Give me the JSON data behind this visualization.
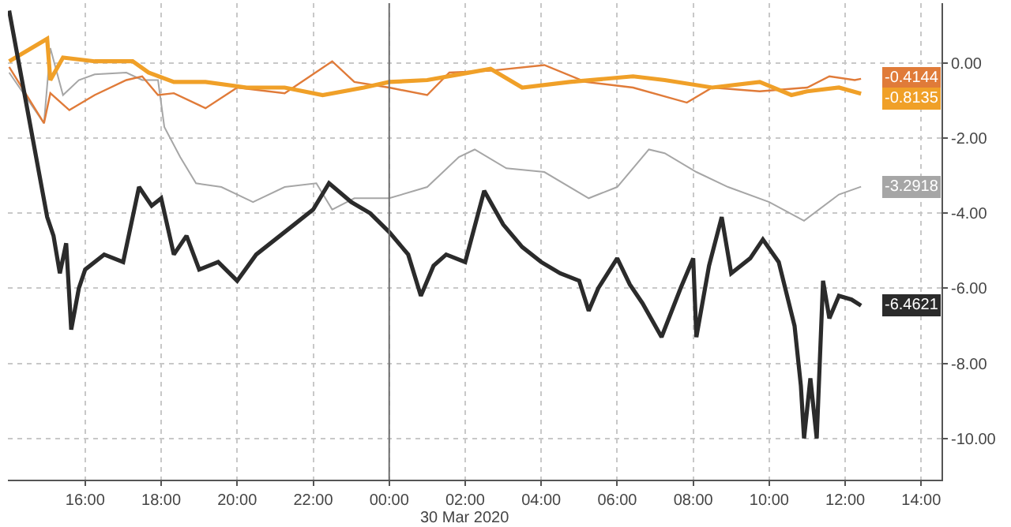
{
  "chart_data": {
    "type": "line",
    "xlim": [
      "2020-03-29T13:58",
      "2020-03-30T14:32"
    ],
    "xticks": [
      {
        "value": "2020-03-29T16:00",
        "label": "16:00"
      },
      {
        "value": "2020-03-29T18:00",
        "label": "18:00"
      },
      {
        "value": "2020-03-29T20:00",
        "label": "20:00"
      },
      {
        "value": "2020-03-29T22:00",
        "label": "22:00"
      },
      {
        "value": "2020-03-30T00:00",
        "label": "00:00"
      },
      {
        "value": "2020-03-30T02:00",
        "label": "02:00"
      },
      {
        "value": "2020-03-30T04:00",
        "label": "04:00"
      },
      {
        "value": "2020-03-30T06:00",
        "label": "06:00"
      },
      {
        "value": "2020-03-30T08:00",
        "label": "08:00"
      },
      {
        "value": "2020-03-30T10:00",
        "label": "10:00"
      },
      {
        "value": "2020-03-30T12:00",
        "label": "12:00"
      },
      {
        "value": "2020-03-30T14:00",
        "label": "14:00"
      }
    ],
    "ylim": [
      -11.1,
      1.6
    ],
    "yticks": [
      {
        "value": 0,
        "label": "0.00"
      },
      {
        "value": -2,
        "label": "-2.00"
      },
      {
        "value": -4,
        "label": "-4.00"
      },
      {
        "value": -6,
        "label": "-6.00"
      },
      {
        "value": -8,
        "label": "-8.00"
      },
      {
        "value": -10,
        "label": "-10.00"
      }
    ],
    "grid": true,
    "line_style": "solid",
    "ref_lines": [
      {
        "axis": "x",
        "value": "2020-03-30T00:00",
        "color": "#6e6e6e"
      }
    ],
    "annotations": [
      "30 Mar 2020"
    ],
    "series": [
      {
        "color": "#a6a6a6",
        "x": [
          "2020-03-29T14:00",
          "2020-03-29T14:55",
          "2020-03-29T15:05",
          "2020-03-29T15:25",
          "2020-03-29T15:50",
          "2020-03-29T16:15",
          "2020-03-29T17:05",
          "2020-03-29T17:30",
          "2020-03-29T17:55",
          "2020-03-29T18:05",
          "2020-03-29T18:30",
          "2020-03-29T18:55",
          "2020-03-29T19:35",
          "2020-03-29T20:25",
          "2020-03-29T21:15",
          "2020-03-29T22:05",
          "2020-03-29T22:30",
          "2020-03-29T23:05",
          "2020-03-30T00:00",
          "2020-03-30T01:00",
          "2020-03-30T01:50",
          "2020-03-30T02:15",
          "2020-03-30T03:05",
          "2020-03-30T04:05",
          "2020-03-30T05:15",
          "2020-03-30T06:00",
          "2020-03-30T06:50",
          "2020-03-30T07:15",
          "2020-03-30T08:05",
          "2020-03-30T08:55",
          "2020-03-30T10:00",
          "2020-03-30T10:55",
          "2020-03-30T11:50",
          "2020-03-30T12:25"
        ],
        "values": [
          -0.25,
          -1.6,
          0.4,
          -0.85,
          -0.45,
          -0.3,
          -0.25,
          -0.45,
          -0.45,
          -1.7,
          -2.5,
          -3.2,
          -3.3,
          -3.7,
          -3.3,
          -3.2,
          -3.9,
          -3.6,
          -3.6,
          -3.3,
          -2.5,
          -2.3,
          -2.8,
          -2.9,
          -3.6,
          -3.3,
          -2.3,
          -2.4,
          -2.9,
          -3.3,
          -3.7,
          -4.2,
          -3.5,
          -3.2918
        ],
        "value_labels": [
          null,
          null,
          null,
          null,
          null,
          null,
          null,
          null,
          null,
          null,
          null,
          null,
          null,
          null,
          null,
          null,
          null,
          null,
          null,
          null,
          null,
          null,
          null,
          null,
          null,
          null,
          null,
          null,
          null,
          null,
          null,
          null,
          null,
          "-3.2918"
        ]
      },
      {
        "color": "#e07b39",
        "x": [
          "2020-03-29T14:00",
          "2020-03-29T14:55",
          "2020-03-29T15:05",
          "2020-03-29T15:35",
          "2020-03-29T16:15",
          "2020-03-29T17:05",
          "2020-03-29T17:30",
          "2020-03-29T17:55",
          "2020-03-29T18:20",
          "2020-03-29T19:10",
          "2020-03-29T20:00",
          "2020-03-29T21:15",
          "2020-03-29T22:30",
          "2020-03-29T23:05",
          "2020-03-30T00:00",
          "2020-03-30T01:00",
          "2020-03-30T01:35",
          "2020-03-30T02:40",
          "2020-03-30T04:05",
          "2020-03-30T05:10",
          "2020-03-30T06:25",
          "2020-03-30T07:50",
          "2020-03-30T08:30",
          "2020-03-30T09:45",
          "2020-03-30T11:00",
          "2020-03-30T11:35",
          "2020-03-30T12:15",
          "2020-03-30T12:25"
        ],
        "values": [
          -0.1,
          -1.6,
          -0.8,
          -1.25,
          -0.85,
          -0.45,
          -0.35,
          -0.85,
          -0.8,
          -1.2,
          -0.65,
          -0.8,
          0.05,
          -0.5,
          -0.65,
          -0.85,
          -0.25,
          -0.2,
          -0.05,
          -0.5,
          -0.65,
          -1.05,
          -0.65,
          -0.75,
          -0.65,
          -0.35,
          -0.45,
          -0.4144
        ],
        "value_labels": [
          null,
          null,
          null,
          null,
          null,
          null,
          null,
          null,
          null,
          null,
          null,
          null,
          null,
          null,
          null,
          null,
          null,
          null,
          null,
          null,
          null,
          null,
          null,
          null,
          null,
          null,
          null,
          "-0.4144"
        ]
      },
      {
        "color": "#f0a028",
        "x": [
          "2020-03-29T14:00",
          "2020-03-29T15:00",
          "2020-03-29T15:05",
          "2020-03-29T15:25",
          "2020-03-29T16:15",
          "2020-03-29T17:15",
          "2020-03-29T17:40",
          "2020-03-29T18:20",
          "2020-03-29T19:10",
          "2020-03-29T20:15",
          "2020-03-29T21:15",
          "2020-03-29T22:15",
          "2020-03-29T23:20",
          "2020-03-30T00:00",
          "2020-03-30T01:00",
          "2020-03-30T01:50",
          "2020-03-30T02:40",
          "2020-03-30T03:30",
          "2020-03-30T04:45",
          "2020-03-30T06:25",
          "2020-03-30T07:15",
          "2020-03-30T08:30",
          "2020-03-30T09:45",
          "2020-03-30T10:35",
          "2020-03-30T11:00",
          "2020-03-30T11:50",
          "2020-03-30T12:25"
        ],
        "values": [
          0.05,
          0.65,
          -0.45,
          0.15,
          0.05,
          0.05,
          -0.25,
          -0.5,
          -0.5,
          -0.65,
          -0.65,
          -0.85,
          -0.65,
          -0.5,
          -0.45,
          -0.3,
          -0.15,
          -0.65,
          -0.5,
          -0.35,
          -0.45,
          -0.65,
          -0.5,
          -0.85,
          -0.75,
          -0.65,
          -0.8135
        ],
        "value_labels": [
          null,
          null,
          null,
          null,
          null,
          null,
          null,
          null,
          null,
          null,
          null,
          null,
          null,
          null,
          null,
          null,
          null,
          null,
          null,
          null,
          null,
          null,
          null,
          null,
          null,
          null,
          "-0.8135"
        ]
      },
      {
        "color": "#2b2b2b",
        "x": [
          "2020-03-29T14:00",
          "2020-03-29T15:00",
          "2020-03-29T15:10",
          "2020-03-29T15:20",
          "2020-03-29T15:30",
          "2020-03-29T15:38",
          "2020-03-29T15:50",
          "2020-03-29T16:00",
          "2020-03-29T16:30",
          "2020-03-29T17:00",
          "2020-03-29T17:25",
          "2020-03-29T17:45",
          "2020-03-29T18:00",
          "2020-03-29T18:20",
          "2020-03-29T18:40",
          "2020-03-29T19:00",
          "2020-03-29T19:30",
          "2020-03-29T20:00",
          "2020-03-29T20:30",
          "2020-03-29T21:00",
          "2020-03-29T21:30",
          "2020-03-29T22:00",
          "2020-03-29T22:25",
          "2020-03-29T23:00",
          "2020-03-29T23:30",
          "2020-03-30T00:00",
          "2020-03-30T00:30",
          "2020-03-30T00:50",
          "2020-03-30T01:10",
          "2020-03-30T01:30",
          "2020-03-30T02:00",
          "2020-03-30T02:30",
          "2020-03-30T03:00",
          "2020-03-30T03:30",
          "2020-03-30T04:00",
          "2020-03-30T04:30",
          "2020-03-30T05:00",
          "2020-03-30T05:15",
          "2020-03-30T05:30",
          "2020-03-30T06:00",
          "2020-03-30T06:20",
          "2020-03-30T06:40",
          "2020-03-30T07:10",
          "2020-03-30T07:40",
          "2020-03-30T08:00",
          "2020-03-30T08:05",
          "2020-03-30T08:25",
          "2020-03-30T08:45",
          "2020-03-30T09:00",
          "2020-03-30T09:30",
          "2020-03-30T09:50",
          "2020-03-30T10:15",
          "2020-03-30T10:40",
          "2020-03-30T10:50",
          "2020-03-30T10:55",
          "2020-03-30T11:05",
          "2020-03-30T11:15",
          "2020-03-30T11:25",
          "2020-03-30T11:35",
          "2020-03-30T11:50",
          "2020-03-30T12:10",
          "2020-03-30T12:25"
        ],
        "values": [
          1.4,
          -4.1,
          -4.6,
          -5.6,
          -4.8,
          -7.1,
          -6.0,
          -5.5,
          -5.1,
          -5.3,
          -3.3,
          -3.8,
          -3.6,
          -5.1,
          -4.6,
          -5.5,
          -5.3,
          -5.8,
          -5.1,
          -4.7,
          -4.3,
          -3.9,
          -3.2,
          -3.7,
          -4.0,
          -4.5,
          -5.1,
          -6.2,
          -5.4,
          -5.1,
          -5.3,
          -3.4,
          -4.3,
          -4.9,
          -5.3,
          -5.6,
          -5.8,
          -6.6,
          -6.0,
          -5.2,
          -5.9,
          -6.4,
          -7.3,
          -6.0,
          -5.2,
          -7.3,
          -5.4,
          -4.1,
          -5.6,
          -5.2,
          -4.7,
          -5.3,
          -7.0,
          -8.6,
          -10.0,
          -8.4,
          -10.0,
          -5.8,
          -6.8,
          -6.2,
          -6.3,
          -6.4621
        ],
        "value_labels": [
          null,
          null,
          null,
          null,
          null,
          null,
          null,
          null,
          null,
          null,
          null,
          null,
          null,
          null,
          null,
          null,
          null,
          null,
          null,
          null,
          null,
          null,
          null,
          null,
          null,
          null,
          null,
          null,
          null,
          null,
          null,
          null,
          null,
          null,
          null,
          null,
          null,
          null,
          null,
          null,
          null,
          null,
          null,
          null,
          null,
          null,
          null,
          null,
          null,
          null,
          null,
          null,
          null,
          null,
          null,
          null,
          null,
          null,
          null,
          null,
          null,
          "-6.4621"
        ]
      }
    ]
  }
}
